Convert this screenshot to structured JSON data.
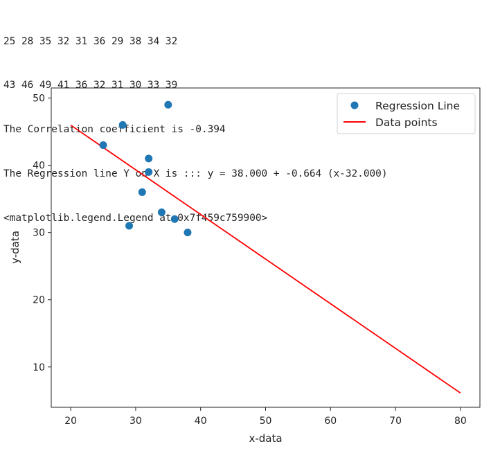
{
  "output": {
    "lines": [
      "25 28 35 32 31 36 29 38 34 32",
      "43 46 49 41 36 32 31 30 33 39",
      "The Correlation coefficient is -0.394",
      "The Regression line Y on X is ::: y = 38.000 + -0.664 (x-32.000)",
      "<matplotlib.legend.Legend at 0x7f459c759900>"
    ]
  },
  "chart_data": {
    "type": "scatter",
    "xlabel": "x-data",
    "ylabel": "y-data",
    "xlim": [
      17,
      83
    ],
    "ylim": [
      4,
      51.5
    ],
    "xticks": [
      20,
      30,
      40,
      50,
      60,
      70,
      80
    ],
    "yticks": [
      10,
      20,
      30,
      40,
      50
    ],
    "grid": false,
    "legend_position": "upper right",
    "series": [
      {
        "name": "Regression Line",
        "kind": "scatter",
        "color": "#1f77b4",
        "x": [
          25,
          28,
          35,
          32,
          31,
          36,
          29,
          38,
          34,
          32
        ],
        "y": [
          43,
          46,
          49,
          41,
          36,
          32,
          31,
          30,
          33,
          39
        ]
      },
      {
        "name": "Data points",
        "kind": "line",
        "color": "#ff0000",
        "x": [
          20,
          80
        ],
        "y": [
          45.968,
          6.128
        ]
      }
    ]
  }
}
